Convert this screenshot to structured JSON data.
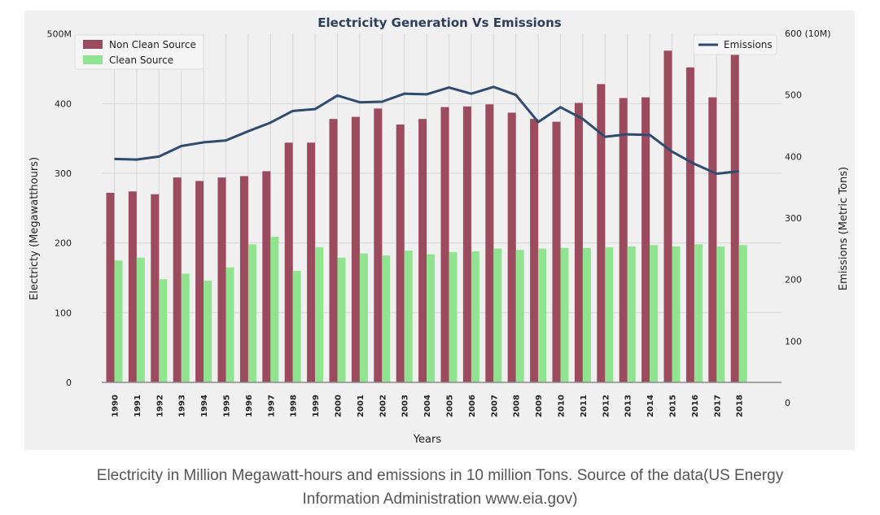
{
  "chart_data": {
    "type": "bar",
    "title": "Electricity Generation Vs Emissions",
    "xlabel": "Years",
    "ylabel_left": "Electricty (Megawatthours)",
    "ylabel_right": "Emissions (Metric Tons)",
    "ylim_left": [
      0,
      500
    ],
    "ylim_right": [
      0,
      600
    ],
    "yticks_left": [
      "0",
      "100",
      "200",
      "300",
      "400",
      "500M"
    ],
    "yticks_right": [
      "0",
      "100",
      "200",
      "300",
      "400",
      "500",
      "600 (10M)"
    ],
    "grid": true,
    "legend_left": "top-left",
    "legend_right": "top-right",
    "categories": [
      "1990",
      "1991",
      "1992",
      "1993",
      "1994",
      "1995",
      "1996",
      "1997",
      "1998",
      "1999",
      "2000",
      "2001",
      "2002",
      "2003",
      "2004",
      "2005",
      "2006",
      "2007",
      "2008",
      "2009",
      "2010",
      "2011",
      "2012",
      "2013",
      "2014",
      "2015",
      "2016",
      "2017",
      "2018"
    ],
    "series": [
      {
        "name": "Non Clean Source",
        "type": "bar",
        "axis": "left",
        "color": "#9c4b5f",
        "values": [
          272,
          274,
          270,
          294,
          289,
          294,
          296,
          303,
          344,
          344,
          378,
          381,
          393,
          370,
          378,
          395,
          396,
          399,
          387,
          378,
          374,
          401,
          428,
          408,
          409,
          476,
          452,
          409,
          478
        ]
      },
      {
        "name": "Clean Source",
        "type": "bar",
        "axis": "left",
        "color": "#90e38f",
        "values": [
          175,
          179,
          148,
          156,
          146,
          165,
          198,
          209,
          160,
          194,
          179,
          185,
          182,
          189,
          184,
          187,
          188,
          192,
          190,
          192,
          193,
          193,
          194,
          195,
          197,
          195,
          198,
          195,
          197
        ]
      },
      {
        "name": "Emissions",
        "type": "line",
        "axis": "right",
        "color": "#2f4b6e",
        "values": [
          396,
          395,
          400,
          417,
          423,
          426,
          441,
          455,
          474,
          477,
          499,
          488,
          489,
          502,
          501,
          512,
          502,
          513,
          500,
          456,
          480,
          461,
          432,
          436,
          435,
          408,
          388,
          372,
          376
        ]
      }
    ]
  },
  "caption": {
    "line1": "Electricity in Million Megawatt-hours and emissions in 10 million Tons. Source of the data(US Energy",
    "line2": "Information Administration www.eia.gov)"
  }
}
